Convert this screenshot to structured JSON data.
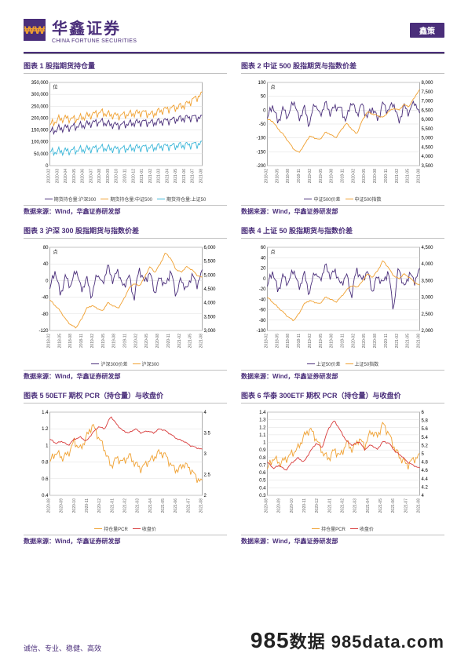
{
  "header": {
    "logo_cn": "华鑫证券",
    "logo_en": "CHINA FORTUNE SECURITIES",
    "logo_icon_glyph": "₩₩",
    "tag": "鑫策"
  },
  "colors": {
    "brand": "#4a2e7a",
    "purple": "#4a2e7a",
    "orange": "#f0a030",
    "cyan": "#3ab6d8",
    "red": "#d83a3a",
    "grid": "#dddddd",
    "border": "#999999",
    "text": "#666666"
  },
  "charts": [
    {
      "id": "c1",
      "title": "图表 1  股指期货持仓量",
      "source": "数据来源：Wind，华鑫证券研发部",
      "unit_label": "位",
      "y_left": {
        "min": 0,
        "max": 350000,
        "step": 50000
      },
      "x_labels": [
        "2020-02",
        "2020-03",
        "2020-04",
        "2020-05",
        "2020-06",
        "2020-07",
        "2020-08",
        "2020-09",
        "2020-10",
        "2020-11",
        "2020-12",
        "2021-01",
        "2021-02",
        "2021-03",
        "2021-04",
        "2021-05",
        "2021-06",
        "2021-07",
        "2021-08"
      ],
      "series": [
        {
          "name": "期货持仓量:沪深300",
          "color": "#4a2e7a",
          "data": [
            140000,
            155000,
            160000,
            165000,
            170000,
            180000,
            185000,
            175000,
            170000,
            175000,
            180000,
            185000,
            180000,
            185000,
            190000,
            195000,
            200000,
            205000,
            200000
          ]
        },
        {
          "name": "期货持仓量:中证500",
          "color": "#f0a030",
          "data": [
            170000,
            195000,
            200000,
            195000,
            205000,
            215000,
            225000,
            215000,
            210000,
            215000,
            220000,
            225000,
            215000,
            230000,
            240000,
            245000,
            255000,
            280000,
            300000
          ]
        },
        {
          "name": "期货持仓量:上证50",
          "color": "#3ab6d8",
          "data": [
            55000,
            60000,
            62000,
            65000,
            68000,
            72000,
            75000,
            72000,
            70000,
            72000,
            75000,
            78000,
            75000,
            80000,
            82000,
            84000,
            86000,
            90000,
            92000
          ]
        }
      ]
    },
    {
      "id": "c2",
      "title": "图表 2  中证 500 股指期货与指数价差",
      "source": "数据来源：Wind，华鑫证券研发部",
      "unit_label": "点",
      "y_left": {
        "min": -200,
        "max": 100,
        "step": 50
      },
      "y_right": {
        "min": 3500,
        "max": 8000,
        "step": 500
      },
      "x_labels": [
        "2018-02",
        "2018-05",
        "2018-08",
        "2018-11",
        "2019-02",
        "2019-05",
        "2019-08",
        "2019-11",
        "2020-02",
        "2020-05",
        "2020-08",
        "2020-11",
        "2021-02",
        "2021-05",
        "2021-08"
      ],
      "series": [
        {
          "name": "中证500价差",
          "color": "#4a2e7a",
          "axis": "left",
          "data": [
            -30,
            20,
            -45,
            5,
            -25,
            40,
            -35,
            10,
            -55,
            30,
            -20,
            25,
            -10,
            15,
            5,
            -40,
            35,
            -15,
            20,
            -25,
            10,
            -35,
            25,
            -5,
            30,
            -45,
            15,
            -10,
            35,
            -20
          ]
        },
        {
          "name": "中证500指数",
          "color": "#f0a030",
          "axis": "right",
          "data": [
            6000,
            5900,
            5500,
            5200,
            4800,
            4400,
            4200,
            4600,
            5100,
            5000,
            4900,
            5300,
            5200,
            5000,
            5400,
            5800,
            5500,
            5200,
            5900,
            6400,
            6300,
            6200,
            6100,
            6400,
            6600,
            6500,
            6800,
            6700,
            7200,
            7600
          ]
        }
      ]
    },
    {
      "id": "c3",
      "title": "图表 3  沪深 300 股指期货与指数价差",
      "source": "数据来源：Wind，华鑫证券研发部",
      "unit_label": "点",
      "y_left": {
        "min": -120,
        "max": 80,
        "step": 40
      },
      "y_right": {
        "min": 3000,
        "max": 6000,
        "step": 500
      },
      "x_labels": [
        "2018-02",
        "2018-05",
        "2018-08",
        "2018-11",
        "2019-02",
        "2019-05",
        "2019-08",
        "2019-11",
        "2020-02",
        "2020-05",
        "2020-08",
        "2020-11",
        "2021-02",
        "2021-05",
        "2021-08"
      ],
      "series": [
        {
          "name": "沪深300价差",
          "color": "#4a2e7a",
          "axis": "left",
          "data": [
            -20,
            25,
            -35,
            10,
            -15,
            30,
            -25,
            5,
            -40,
            20,
            -10,
            35,
            0,
            25,
            -20,
            15,
            -45,
            30,
            -5,
            20,
            -30,
            10,
            -15,
            25,
            -35,
            5,
            -25,
            15,
            -10,
            20
          ]
        },
        {
          "name": "沪深300",
          "color": "#f0a030",
          "axis": "right",
          "data": [
            4100,
            3900,
            3700,
            3400,
            3200,
            3100,
            3400,
            3800,
            3900,
            3800,
            3700,
            4000,
            3900,
            3800,
            4100,
            4500,
            4700,
            4600,
            4900,
            5300,
            5100,
            5400,
            5800,
            5600,
            5200,
            5100,
            5300,
            5200,
            5000,
            4900
          ]
        }
      ]
    },
    {
      "id": "c4",
      "title": "图表 4  上证 50 股指期货与指数价差",
      "source": "数据来源：Wind，华鑫证券研发部",
      "unit_label": "点",
      "y_left": {
        "min": -100,
        "max": 60,
        "step": 20
      },
      "y_right": {
        "min": 2000,
        "max": 4500,
        "step": 500
      },
      "x_labels": [
        "2018-02",
        "2018-05",
        "2018-08",
        "2018-11",
        "2019-02",
        "2019-05",
        "2019-08",
        "2019-11",
        "2020-02",
        "2020-05",
        "2020-08",
        "2020-11",
        "2021-02",
        "2021-05",
        "2021-08"
      ],
      "series": [
        {
          "name": "上证50价差",
          "color": "#4a2e7a",
          "axis": "left",
          "data": [
            -15,
            15,
            -25,
            5,
            -10,
            20,
            -20,
            10,
            -30,
            15,
            -5,
            25,
            5,
            15,
            -15,
            10,
            -35,
            20,
            -5,
            15,
            -25,
            5,
            -10,
            15,
            -60,
            25,
            -20,
            10,
            -5,
            15
          ]
        },
        {
          "name": "上证50指数",
          "color": "#f0a030",
          "axis": "right",
          "data": [
            3000,
            2850,
            2700,
            2550,
            2400,
            2300,
            2500,
            2800,
            2900,
            2850,
            2800,
            3000,
            2950,
            2850,
            3000,
            3200,
            3350,
            3300,
            3450,
            3700,
            3600,
            3800,
            4100,
            3900,
            3650,
            3550,
            3700,
            3600,
            3450,
            3350
          ]
        }
      ]
    },
    {
      "id": "c5",
      "title": "图表 5  50ETF 期权 PCR（持仓量）与收盘价",
      "source": "数据来源：Wind，华鑫证券研发部",
      "y_left": {
        "min": 0.4,
        "max": 1.4,
        "step": 0.2
      },
      "y_right": {
        "min": 2.0,
        "max": 4.0,
        "step": 0.5
      },
      "x_labels": [
        "2020-08",
        "2020-09",
        "2020-10",
        "2020-11",
        "2020-12",
        "2021-01",
        "2021-02",
        "2021-03",
        "2021-04",
        "2021-05",
        "2021-06",
        "2021-07",
        "2021-08"
      ],
      "series": [
        {
          "name": "持仓量PCR",
          "color": "#f0a030",
          "axis": "left",
          "data": [
            0.8,
            0.92,
            0.85,
            0.9,
            1.05,
            0.95,
            1.1,
            1.25,
            1.1,
            0.95,
            0.75,
            0.85,
            0.8,
            0.88,
            0.78,
            0.72,
            0.8,
            0.85,
            0.92,
            0.88,
            0.75,
            0.7,
            0.78,
            0.72,
            0.62,
            0.55
          ]
        },
        {
          "name": "收盘价",
          "color": "#d83a3a",
          "axis": "right",
          "data": [
            3.35,
            3.25,
            3.3,
            3.2,
            3.35,
            3.4,
            3.3,
            3.5,
            3.65,
            3.6,
            3.9,
            3.7,
            3.55,
            3.5,
            3.6,
            3.5,
            3.55,
            3.5,
            3.6,
            3.55,
            3.45,
            3.35,
            3.3,
            3.2,
            3.15,
            3.1
          ]
        }
      ]
    },
    {
      "id": "c6",
      "title": "图表 6  华泰 300ETF 期权 PCR（持仓量）与收盘价",
      "source": "数据来源：Wind，华鑫证券研发部",
      "y_left": {
        "min": 0.3,
        "max": 1.4,
        "step": 0.1
      },
      "y_right": {
        "min": 4.0,
        "max": 6.0,
        "step": 0.2
      },
      "x_labels": [
        "2020-08",
        "2020-09",
        "2020-10",
        "2020-11",
        "2020-12",
        "2021-01",
        "2021-02",
        "2021-03",
        "2021-04",
        "2021-05",
        "2021-06",
        "2021-07",
        "2021-08"
      ],
      "series": [
        {
          "name": "持仓量PCR",
          "color": "#f0a030",
          "axis": "left",
          "data": [
            0.65,
            0.8,
            0.72,
            0.78,
            0.85,
            0.92,
            1.08,
            1.18,
            1.05,
            0.88,
            0.78,
            0.9,
            0.82,
            1.0,
            0.9,
            1.05,
            0.95,
            1.15,
            1.08,
            1.25,
            1.1,
            0.9,
            0.78,
            0.7,
            0.78,
            0.82
          ]
        },
        {
          "name": "收盘价",
          "color": "#d83a3a",
          "axis": "right",
          "data": [
            4.8,
            4.65,
            4.72,
            4.6,
            4.78,
            4.9,
            4.8,
            5.05,
            5.25,
            5.15,
            5.6,
            5.8,
            5.55,
            5.3,
            5.2,
            5.3,
            5.1,
            5.22,
            5.1,
            5.3,
            5.25,
            5.05,
            4.95,
            4.8,
            4.72,
            4.65
          ]
        }
      ]
    }
  ],
  "footer": {
    "left": "诚信、专业、稳健、高效",
    "right_num": "985",
    "right_text": "数据 985data.com"
  }
}
